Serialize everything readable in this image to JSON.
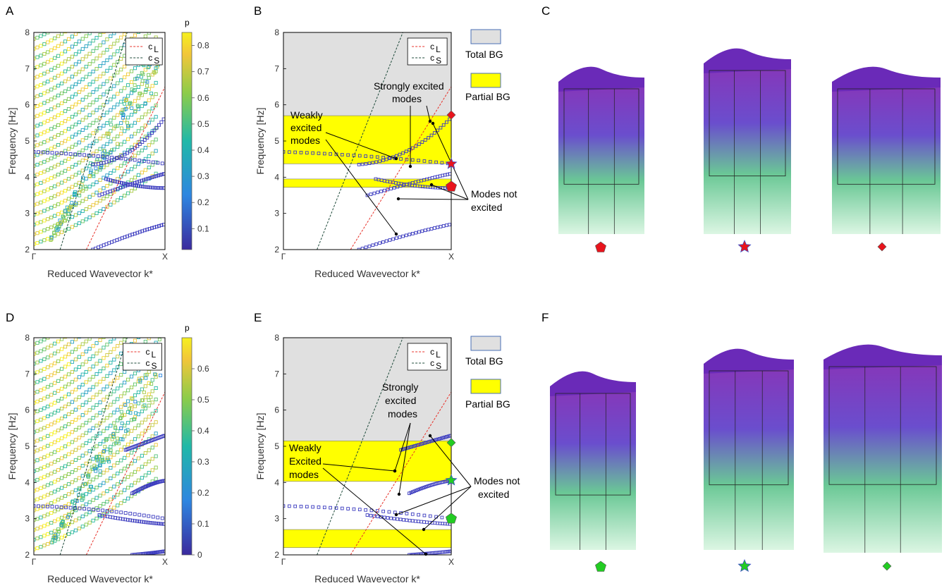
{
  "panel_labels": [
    "A",
    "B",
    "C",
    "D",
    "E",
    "F"
  ],
  "axis": {
    "ylabel": "Frequency [Hz]",
    "xlabel": "Reduced Wavevector k*",
    "x_ticks": [
      "Γ",
      "X"
    ],
    "y_ticks": [
      "2",
      "3",
      "4",
      "5",
      "6",
      "7",
      "8"
    ]
  },
  "legend": {
    "cL": "c",
    "cL_sub": "L",
    "cS": "c",
    "cS_sub": "S"
  },
  "bg_legend": {
    "total": "Total BG",
    "partial": "Partial BG"
  },
  "colorbar_top": {
    "title": "p",
    "ticks": [
      "0.1",
      "0.2",
      "0.3",
      "0.4",
      "0.5",
      "0.6",
      "0.7",
      "0.8"
    ]
  },
  "colorbar_bottom": {
    "title": "p",
    "ticks": [
      "0",
      "0.1",
      "0.2",
      "0.3",
      "0.4",
      "0.5",
      "0.6"
    ]
  },
  "annotations_B": {
    "weak1": "Weakly",
    "weak2": "excited",
    "weak3": "modes",
    "strong1": "Strongly excited",
    "strong2": "modes",
    "notex1": "Modes not",
    "notex2": "excited"
  },
  "annotations_E": {
    "weak1": "Weakly",
    "weak2": "Excited",
    "weak3": "modes",
    "strong1": "Strongly",
    "strong2": "excited",
    "strong3": "modes",
    "notex1": "Modes not",
    "notex2": "excited"
  },
  "colors": {
    "longitudinal_line": "#e8322a",
    "shear_line": "#1e4a3a",
    "total_bg": "#e0e0e0",
    "partial_bg": "#ffff00",
    "low_p": "#3b3bbf",
    "high_p": "#f2c63a",
    "marker_red": "#e8141c",
    "marker_green": "#22cc22"
  },
  "chart_data": [
    {
      "panel": "A",
      "type": "scatter",
      "xlabel": "Reduced Wavevector k*",
      "ylabel": "Frequency [Hz]",
      "ylim": [
        2,
        8
      ],
      "x_ticks": [
        "Γ",
        "X"
      ],
      "colorbar": {
        "title": "p",
        "range": [
          0.02,
          0.85
        ]
      },
      "low_p_branches": [
        {
          "x": [
            0,
            0.5,
            1
          ],
          "y": [
            4.7,
            4.62,
            4.37
          ]
        },
        {
          "x": [
            0.45,
            0.75,
            1
          ],
          "y": [
            4.35,
            4.45,
            5.65
          ]
        },
        {
          "x": [
            0.55,
            0.8,
            1
          ],
          "y": [
            3.95,
            3.7,
            3.7
          ]
        },
        {
          "x": [
            0.5,
            0.8,
            1
          ],
          "y": [
            3.5,
            3.9,
            4.1
          ]
        },
        {
          "x": [
            0.45,
            0.75,
            1
          ],
          "y": [
            2.0,
            2.45,
            2.7
          ]
        }
      ],
      "legend": [
        "cL",
        "cS"
      ]
    },
    {
      "panel": "B",
      "type": "line",
      "xlabel": "Reduced Wavevector k*",
      "ylabel": "Frequency [Hz]",
      "ylim": [
        2,
        8
      ],
      "total_bg_from": 5.7,
      "partial_bg": [
        [
          4.37,
          5.7
        ],
        [
          3.72,
          3.95
        ]
      ],
      "legend": [
        "cL",
        "cS",
        "Total BG",
        "Partial BG"
      ]
    },
    {
      "panel": "D",
      "type": "scatter",
      "xlabel": "Reduced Wavevector k*",
      "ylabel": "Frequency [Hz]",
      "ylim": [
        2,
        8
      ],
      "x_ticks": [
        "Γ",
        "X"
      ],
      "colorbar": {
        "title": "p",
        "range": [
          0,
          0.7
        ]
      },
      "low_p_branches": [
        {
          "x": [
            0,
            0.5,
            1
          ],
          "y": [
            3.35,
            3.3,
            3.0
          ]
        },
        {
          "x": [
            0.5,
            0.8,
            1
          ],
          "y": [
            3.1,
            2.9,
            2.85
          ]
        },
        {
          "x": [
            0.7,
            0.85,
            1
          ],
          "y": [
            4.9,
            5.1,
            5.3
          ]
        },
        {
          "x": [
            0.75,
            0.9,
            1
          ],
          "y": [
            3.7,
            4.0,
            4.05
          ]
        },
        {
          "x": [
            0.75,
            0.9,
            1
          ],
          "y": [
            2.0,
            2.05,
            2.1
          ]
        }
      ],
      "legend": [
        "cL",
        "cS"
      ]
    },
    {
      "panel": "E",
      "type": "line",
      "xlabel": "Reduced Wavevector k*",
      "ylabel": "Frequency [Hz]",
      "ylim": [
        2,
        8
      ],
      "total_bg_from": 5.15,
      "partial_bg": [
        [
          4.03,
          5.15
        ],
        [
          2.2,
          2.7
        ]
      ],
      "legend": [
        "cL",
        "cS",
        "Total BG",
        "Partial BG"
      ]
    }
  ]
}
